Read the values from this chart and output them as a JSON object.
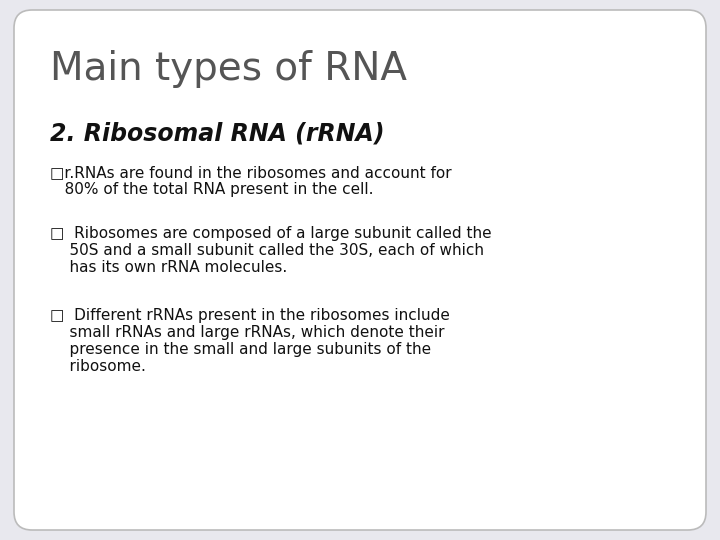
{
  "background_color": "#e8e8ee",
  "card_color": "#ffffff",
  "title": "Main types of RNA",
  "title_color": "#555555",
  "title_fontsize": 28,
  "subtitle": "2. Ribosomal RNA (rRNA)",
  "subtitle_color": "#111111",
  "subtitle_fontsize": 17,
  "bullet_color": "#111111",
  "bullet_fontsize": 11,
  "marker_fontsize": 10,
  "bullet1_line1": "□r.RNAs are found in the ribosomes and account for",
  "bullet1_line2": "   80% of the total RNA present in the cell.",
  "bullet2_line1": "□  Ribosomes are composed of a large subunit called the",
  "bullet2_line2": "    50S and a small subunit called the 30S, each of which",
  "bullet2_line3": "    has its own rRNA molecules.",
  "bullet3_line1": "□  Different rRNAs present in the ribosomes include",
  "bullet3_line2": "    small rRNAs and large rRNAs, which denote their",
  "bullet3_line3": "    presence in the small and large subunits of the",
  "bullet3_line4": "    ribosome."
}
